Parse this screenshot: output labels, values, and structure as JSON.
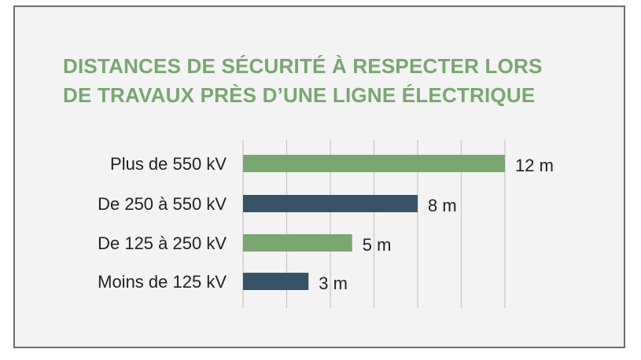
{
  "chart_data": {
    "type": "bar",
    "orientation": "horizontal",
    "title_lines": [
      "DISTANCES DE SÉCURITÉ À RESPECTER LORS",
      "DE TRAVAUX PRÈS D’UNE LIGNE ÉLECTRIQUE"
    ],
    "categories": [
      "Plus de 550 kV",
      "De 250 à 550 kV",
      "De 125 à 250 kV",
      "Moins de 125 kV"
    ],
    "values": [
      12,
      8,
      5,
      3
    ],
    "value_labels": [
      "12 m",
      "8 m",
      "5 m",
      "3 m"
    ],
    "unit": "m",
    "xlim": [
      0,
      12
    ],
    "gridlines_x": [
      0,
      2,
      4,
      6,
      8,
      10,
      12
    ],
    "grid": true,
    "bar_colors": [
      "#7aa672",
      "#375466",
      "#7aa672",
      "#375466"
    ]
  },
  "colors": {
    "title": "#7aa672",
    "background": "#f3f3f3",
    "border": "#6e6e6e",
    "gridline": "#c9c9c9"
  }
}
